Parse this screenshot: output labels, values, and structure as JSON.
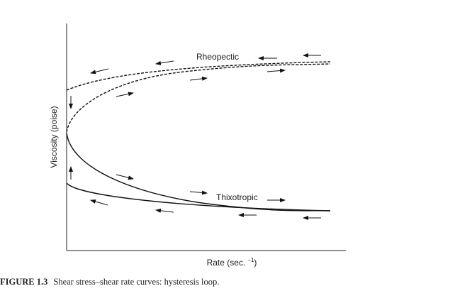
{
  "figure": {
    "caption_label": "FIGURE 1.3",
    "caption_text": "Shear stress–shear rate curves: hysteresis loop.",
    "y_axis_label": "Viscosity (poise)",
    "x_axis_label": "Rate (sec.",
    "x_axis_label_sup": "−1",
    "x_axis_label_close": ")",
    "curve_labels": {
      "rheopectic": "Rheopectic",
      "thixotropic": "Thixotropic"
    }
  }
}
